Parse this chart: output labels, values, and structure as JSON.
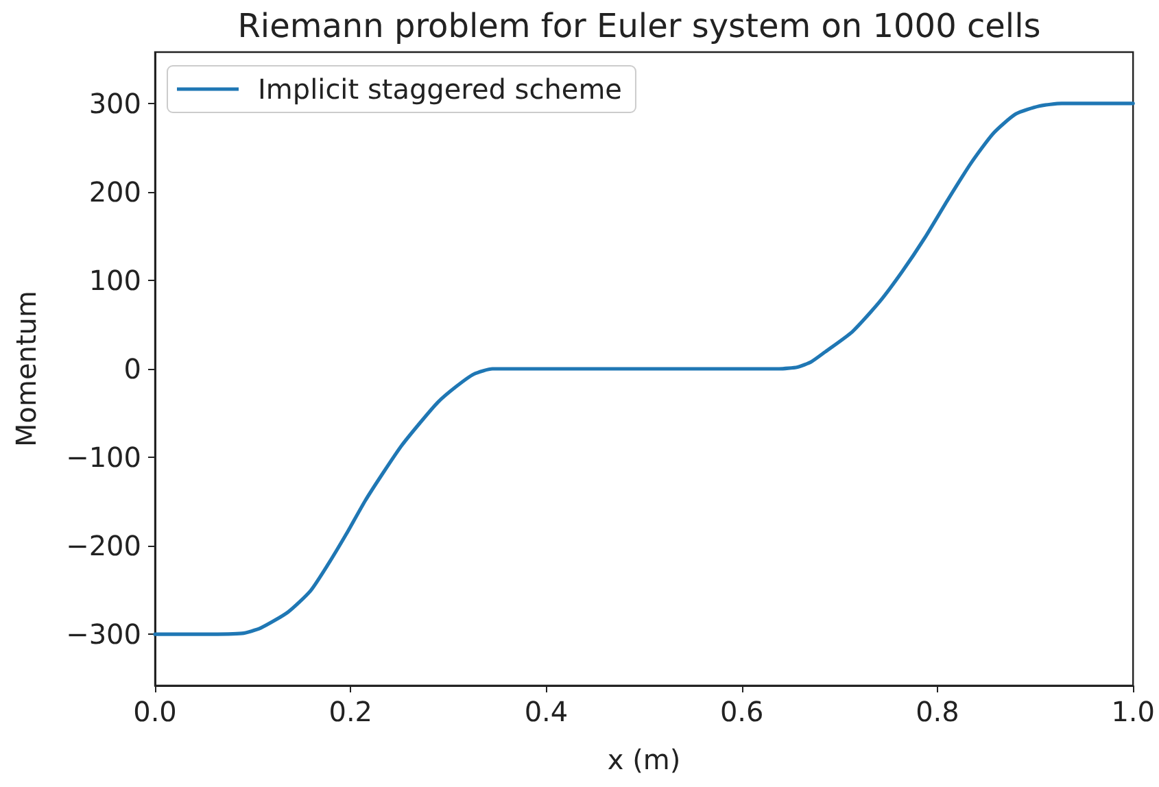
{
  "chart_data": {
    "type": "line",
    "title": "Riemann problem for Euler system on 1000 cells",
    "xlabel": "x (m)",
    "ylabel": "Momentum",
    "xlim": [
      0,
      1
    ],
    "ylim": [
      -358,
      358
    ],
    "xticks": [
      {
        "value": 0,
        "label": "0.0"
      },
      0.2,
      0.4,
      0.6,
      0.8,
      {
        "value": 1,
        "label": "1.0"
      }
    ],
    "yticks": [
      {
        "value": -300,
        "label": "−300"
      },
      {
        "value": -200,
        "label": "−200"
      },
      {
        "value": -100,
        "label": "−100"
      },
      0,
      100,
      200,
      300
    ],
    "grid": false,
    "legend": "top left",
    "marker": "none",
    "line_style": "solid",
    "series": [
      {
        "name": "Implicit staggered scheme",
        "color": "#1f77b4",
        "x": [
          0,
          0.05,
          0.089,
          0.108,
          0.136,
          0.159,
          0.177,
          0.196,
          0.215,
          0.233,
          0.252,
          0.271,
          0.289,
          0.308,
          0.326,
          0.345,
          0.364,
          0.5,
          0.638,
          0.657,
          0.671,
          0.685,
          0.713,
          0.741,
          0.764,
          0.787,
          0.81,
          0.834,
          0.857,
          0.88,
          0.904,
          0.927,
          0.95,
          1
        ],
        "values": [
          -300,
          -300,
          -299,
          -293,
          -275,
          -251,
          -221,
          -186,
          -149,
          -118,
          -87,
          -61,
          -38,
          -20,
          -6,
          0,
          0,
          0,
          0,
          2,
          8,
          19,
          42,
          76,
          110,
          148,
          190,
          232,
          266,
          288,
          297,
          300,
          300,
          300
        ]
      }
    ]
  }
}
